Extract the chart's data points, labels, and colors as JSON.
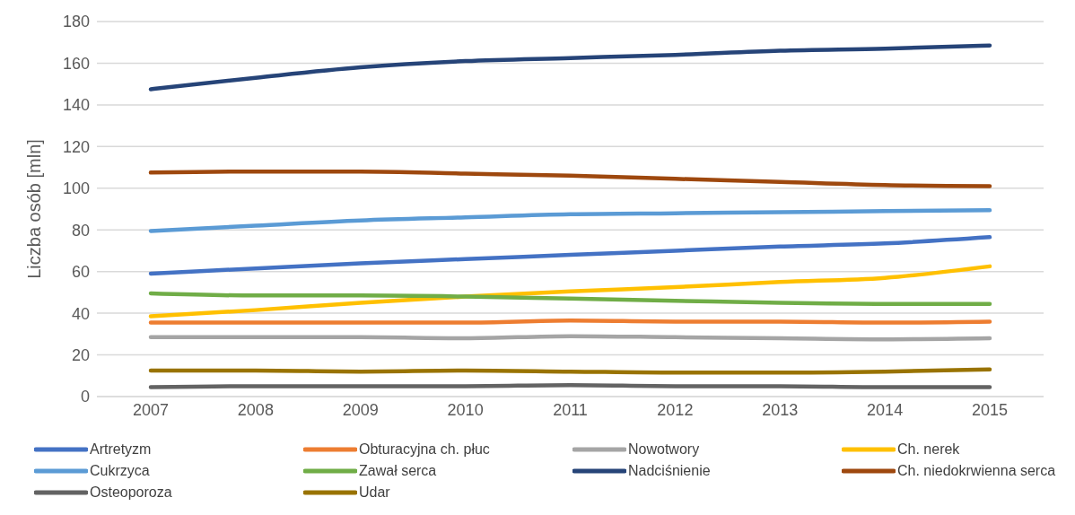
{
  "chart_data": {
    "type": "line",
    "ylabel": "Liczba osób [mln]",
    "categories": [
      "2007",
      "2008",
      "2009",
      "2010",
      "2011",
      "2012",
      "2013",
      "2014",
      "2015"
    ],
    "ylim": [
      0,
      180
    ],
    "yticks": [
      0,
      20,
      40,
      60,
      80,
      100,
      120,
      140,
      160,
      180
    ],
    "grid": "y",
    "legend": "bottom",
    "marker": "none",
    "line_style": "solid",
    "series": [
      {
        "name": "Artretyzm",
        "color": "#4472c4",
        "values": [
          59,
          61.5,
          64,
          66,
          68,
          70,
          72,
          73.5,
          76.5
        ]
      },
      {
        "name": "Obturacyjna ch. płuc",
        "color": "#ed7d31",
        "values": [
          35.5,
          35.5,
          35.5,
          35.5,
          36.5,
          36,
          36,
          35.5,
          36
        ]
      },
      {
        "name": "Nowotwory",
        "color": "#a5a5a5",
        "values": [
          28.5,
          28.5,
          28.5,
          28,
          29,
          28.5,
          28,
          27.5,
          28
        ]
      },
      {
        "name": "Ch. nerek",
        "color": "#ffc000",
        "values": [
          38.5,
          41.5,
          45,
          48,
          50.5,
          52.5,
          55,
          57,
          62.5
        ]
      },
      {
        "name": "Cukrzyca",
        "color": "#5b9bd5",
        "values": [
          79.5,
          82,
          84.5,
          86,
          87.5,
          88,
          88.5,
          89,
          89.5
        ]
      },
      {
        "name": "Zawał serca",
        "color": "#70ad47",
        "values": [
          49.5,
          48.5,
          48.5,
          48,
          47,
          46,
          45,
          44.5,
          44.5
        ]
      },
      {
        "name": "Nadciśnienie",
        "color": "#264478",
        "values": [
          147.5,
          153,
          158,
          161,
          162.5,
          164,
          166,
          167,
          168.5
        ]
      },
      {
        "name": "Ch. niedokrwienna serca",
        "color": "#9e480e",
        "values": [
          107.5,
          108,
          108,
          107,
          106,
          104.5,
          103,
          101.5,
          101
        ]
      },
      {
        "name": "Osteoporoza",
        "color": "#636363",
        "values": [
          4.5,
          5,
          5,
          5,
          5.5,
          5,
          5,
          4.5,
          4.5
        ]
      },
      {
        "name": "Udar",
        "color": "#997300",
        "values": [
          12.5,
          12.5,
          12,
          12.5,
          12,
          11.5,
          11.5,
          12,
          13
        ]
      }
    ]
  }
}
